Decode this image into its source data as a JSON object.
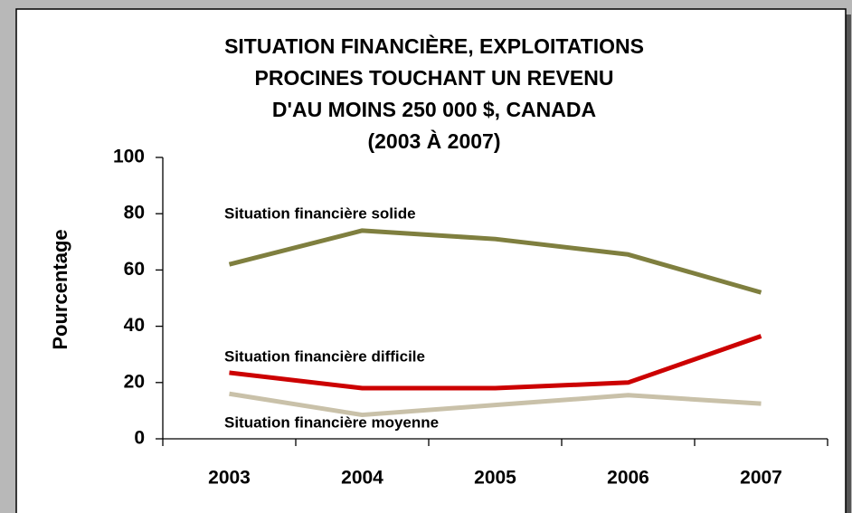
{
  "chart_data": {
    "type": "line",
    "title": [
      "SITUATION FINANCIÈRE, EXPLOITATIONS",
      "PROCINES TOUCHANT UN REVENU",
      "D'AU MOINS 250 000 $, CANADA",
      "(2003 À 2007)"
    ],
    "ylabel": "Pourcentage",
    "categories": [
      "2003",
      "2004",
      "2005",
      "2006",
      "2007"
    ],
    "series": [
      {
        "name": "Situation financière solide",
        "color": "#7f7f3f",
        "values": [
          62,
          74,
          71,
          65.5,
          52
        ]
      },
      {
        "name": "Situation financière difficile",
        "color": "#cc0000",
        "values": [
          23.5,
          18,
          18,
          20,
          36.5
        ]
      },
      {
        "name": "Situation financière moyenne",
        "color": "#c9c1a9",
        "values": [
          16,
          8.5,
          12,
          15.5,
          12.5
        ]
      }
    ],
    "ylim": [
      0,
      100
    ],
    "yticks": [
      0,
      20,
      40,
      60,
      80,
      100
    ],
    "grid": false
  }
}
